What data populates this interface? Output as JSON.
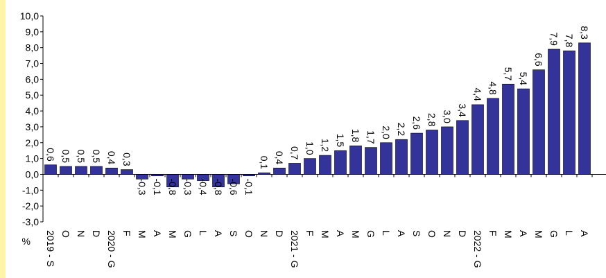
{
  "chart_data": {
    "type": "bar",
    "y_unit_label": "%",
    "ylim": [
      -3.0,
      10.0
    ],
    "ytick_labels": [
      "10,0",
      "9,0",
      "8,0",
      "7,0",
      "6,0",
      "5,0",
      "4,0",
      "3,0",
      "2,0",
      "1,0",
      "0,0",
      "-1,0",
      "-2,0",
      "-3,0"
    ],
    "ytick_values": [
      10,
      9,
      8,
      7,
      6,
      5,
      4,
      3,
      2,
      1,
      0,
      -1,
      -2,
      -3
    ],
    "categories": [
      "2019 - S",
      "O",
      "N",
      "D",
      "2020 - G",
      "F",
      "M",
      "A",
      "M",
      "G",
      "L",
      "A",
      "S",
      "O",
      "N",
      "D",
      "2021 - G",
      "F",
      "M",
      "A",
      "M",
      "G",
      "L",
      "A",
      "S",
      "O",
      "N",
      "D",
      "2022 - G",
      "F",
      "M",
      "A",
      "M",
      "G",
      "L",
      "A"
    ],
    "values": [
      0.6,
      0.5,
      0.5,
      0.5,
      0.4,
      0.3,
      -0.3,
      -0.1,
      -0.8,
      -0.3,
      -0.4,
      -0.8,
      -0.6,
      -0.1,
      0.1,
      0.4,
      0.7,
      1.0,
      1.2,
      1.5,
      1.8,
      1.7,
      2.0,
      2.2,
      2.6,
      2.8,
      3.0,
      3.4,
      4.4,
      4.8,
      5.7,
      5.4,
      6.6,
      7.9,
      7.8,
      8.3
    ],
    "data_labels": [
      "0,6",
      "0,5",
      "0,5",
      "0,5",
      "0,4",
      "0,3",
      "-0,3",
      "-0,1",
      "-0,8",
      "-0,3",
      "-0,4",
      "-0,8",
      "-0,6",
      "-0,1",
      "0,1",
      "0,4",
      "0,7",
      "1,0",
      "1,2",
      "1,5",
      "1,8",
      "1,7",
      "2,0",
      "2,2",
      "2,6",
      "2,8",
      "3,0",
      "3,4",
      "4,4",
      "4,8",
      "5,7",
      "5,4",
      "6,6",
      "7,9",
      "7,8",
      "8,3"
    ],
    "grid": false,
    "bar_color": "#333399",
    "background_color": "#ffffff",
    "frame_color": "#fff4a8"
  }
}
